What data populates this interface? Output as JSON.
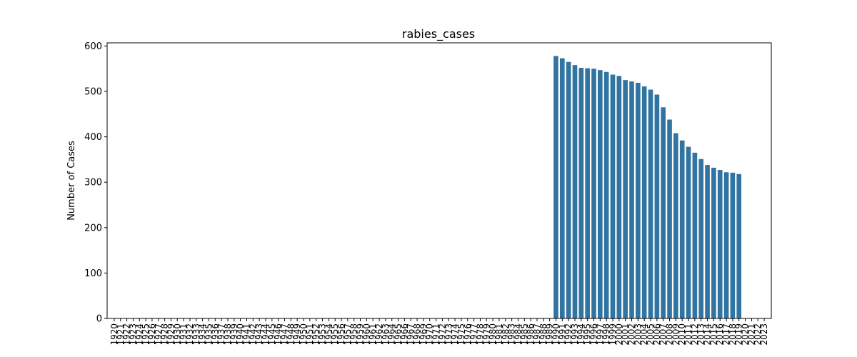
{
  "chart_data": {
    "type": "bar",
    "title": "rabies_cases",
    "xlabel": "",
    "ylabel": "Number of Cases",
    "ylim": [
      0,
      607
    ],
    "yticks": [
      0,
      100,
      200,
      300,
      400,
      500,
      600
    ],
    "grid": false,
    "legend": "none",
    "bar_color": "#3274a1",
    "categories": [
      "1920",
      "1921",
      "1922",
      "1923",
      "1924",
      "1925",
      "1926",
      "1927",
      "1928",
      "1929",
      "1930",
      "1931",
      "1932",
      "1933",
      "1934",
      "1935",
      "1936",
      "1937",
      "1938",
      "1939",
      "1940",
      "1941",
      "1942",
      "1943",
      "1944",
      "1945",
      "1946",
      "1947",
      "1948",
      "1949",
      "1950",
      "1951",
      "1952",
      "1953",
      "1954",
      "1955",
      "1956",
      "1957",
      "1958",
      "1959",
      "1960",
      "1961",
      "1962",
      "1963",
      "1964",
      "1965",
      "1966",
      "1967",
      "1968",
      "1969",
      "1970",
      "1971",
      "1972",
      "1973",
      "1974",
      "1975",
      "1976",
      "1977",
      "1978",
      "1979",
      "1980",
      "1981",
      "1982",
      "1983",
      "1984",
      "1985",
      "1986",
      "1987",
      "1988",
      "1989",
      "1990",
      "1991",
      "1992",
      "1993",
      "1994",
      "1995",
      "1996",
      "1997",
      "1998",
      "1999",
      "2000",
      "2001",
      "2002",
      "2003",
      "2004",
      "2005",
      "2006",
      "2007",
      "2008",
      "2009",
      "2010",
      "2011",
      "2012",
      "2013",
      "2014",
      "2015",
      "2016",
      "2017",
      "2018",
      "2019",
      "2020",
      "2021",
      "2022",
      "2023"
    ],
    "values": [
      null,
      null,
      null,
      null,
      null,
      null,
      null,
      null,
      null,
      null,
      null,
      null,
      null,
      null,
      null,
      null,
      null,
      null,
      null,
      null,
      null,
      null,
      null,
      null,
      null,
      null,
      null,
      null,
      null,
      null,
      null,
      null,
      null,
      null,
      null,
      null,
      null,
      null,
      null,
      null,
      null,
      null,
      null,
      null,
      null,
      null,
      null,
      null,
      null,
      null,
      null,
      null,
      null,
      null,
      null,
      null,
      null,
      null,
      null,
      null,
      null,
      null,
      null,
      null,
      null,
      null,
      null,
      null,
      null,
      null,
      578,
      573,
      565,
      558,
      552,
      551,
      550,
      547,
      543,
      537,
      534,
      525,
      522,
      519,
      511,
      504,
      493,
      465,
      438,
      408,
      392,
      378,
      365,
      351,
      338,
      332,
      327,
      322,
      321,
      318,
      null,
      null,
      null,
      null
    ]
  }
}
